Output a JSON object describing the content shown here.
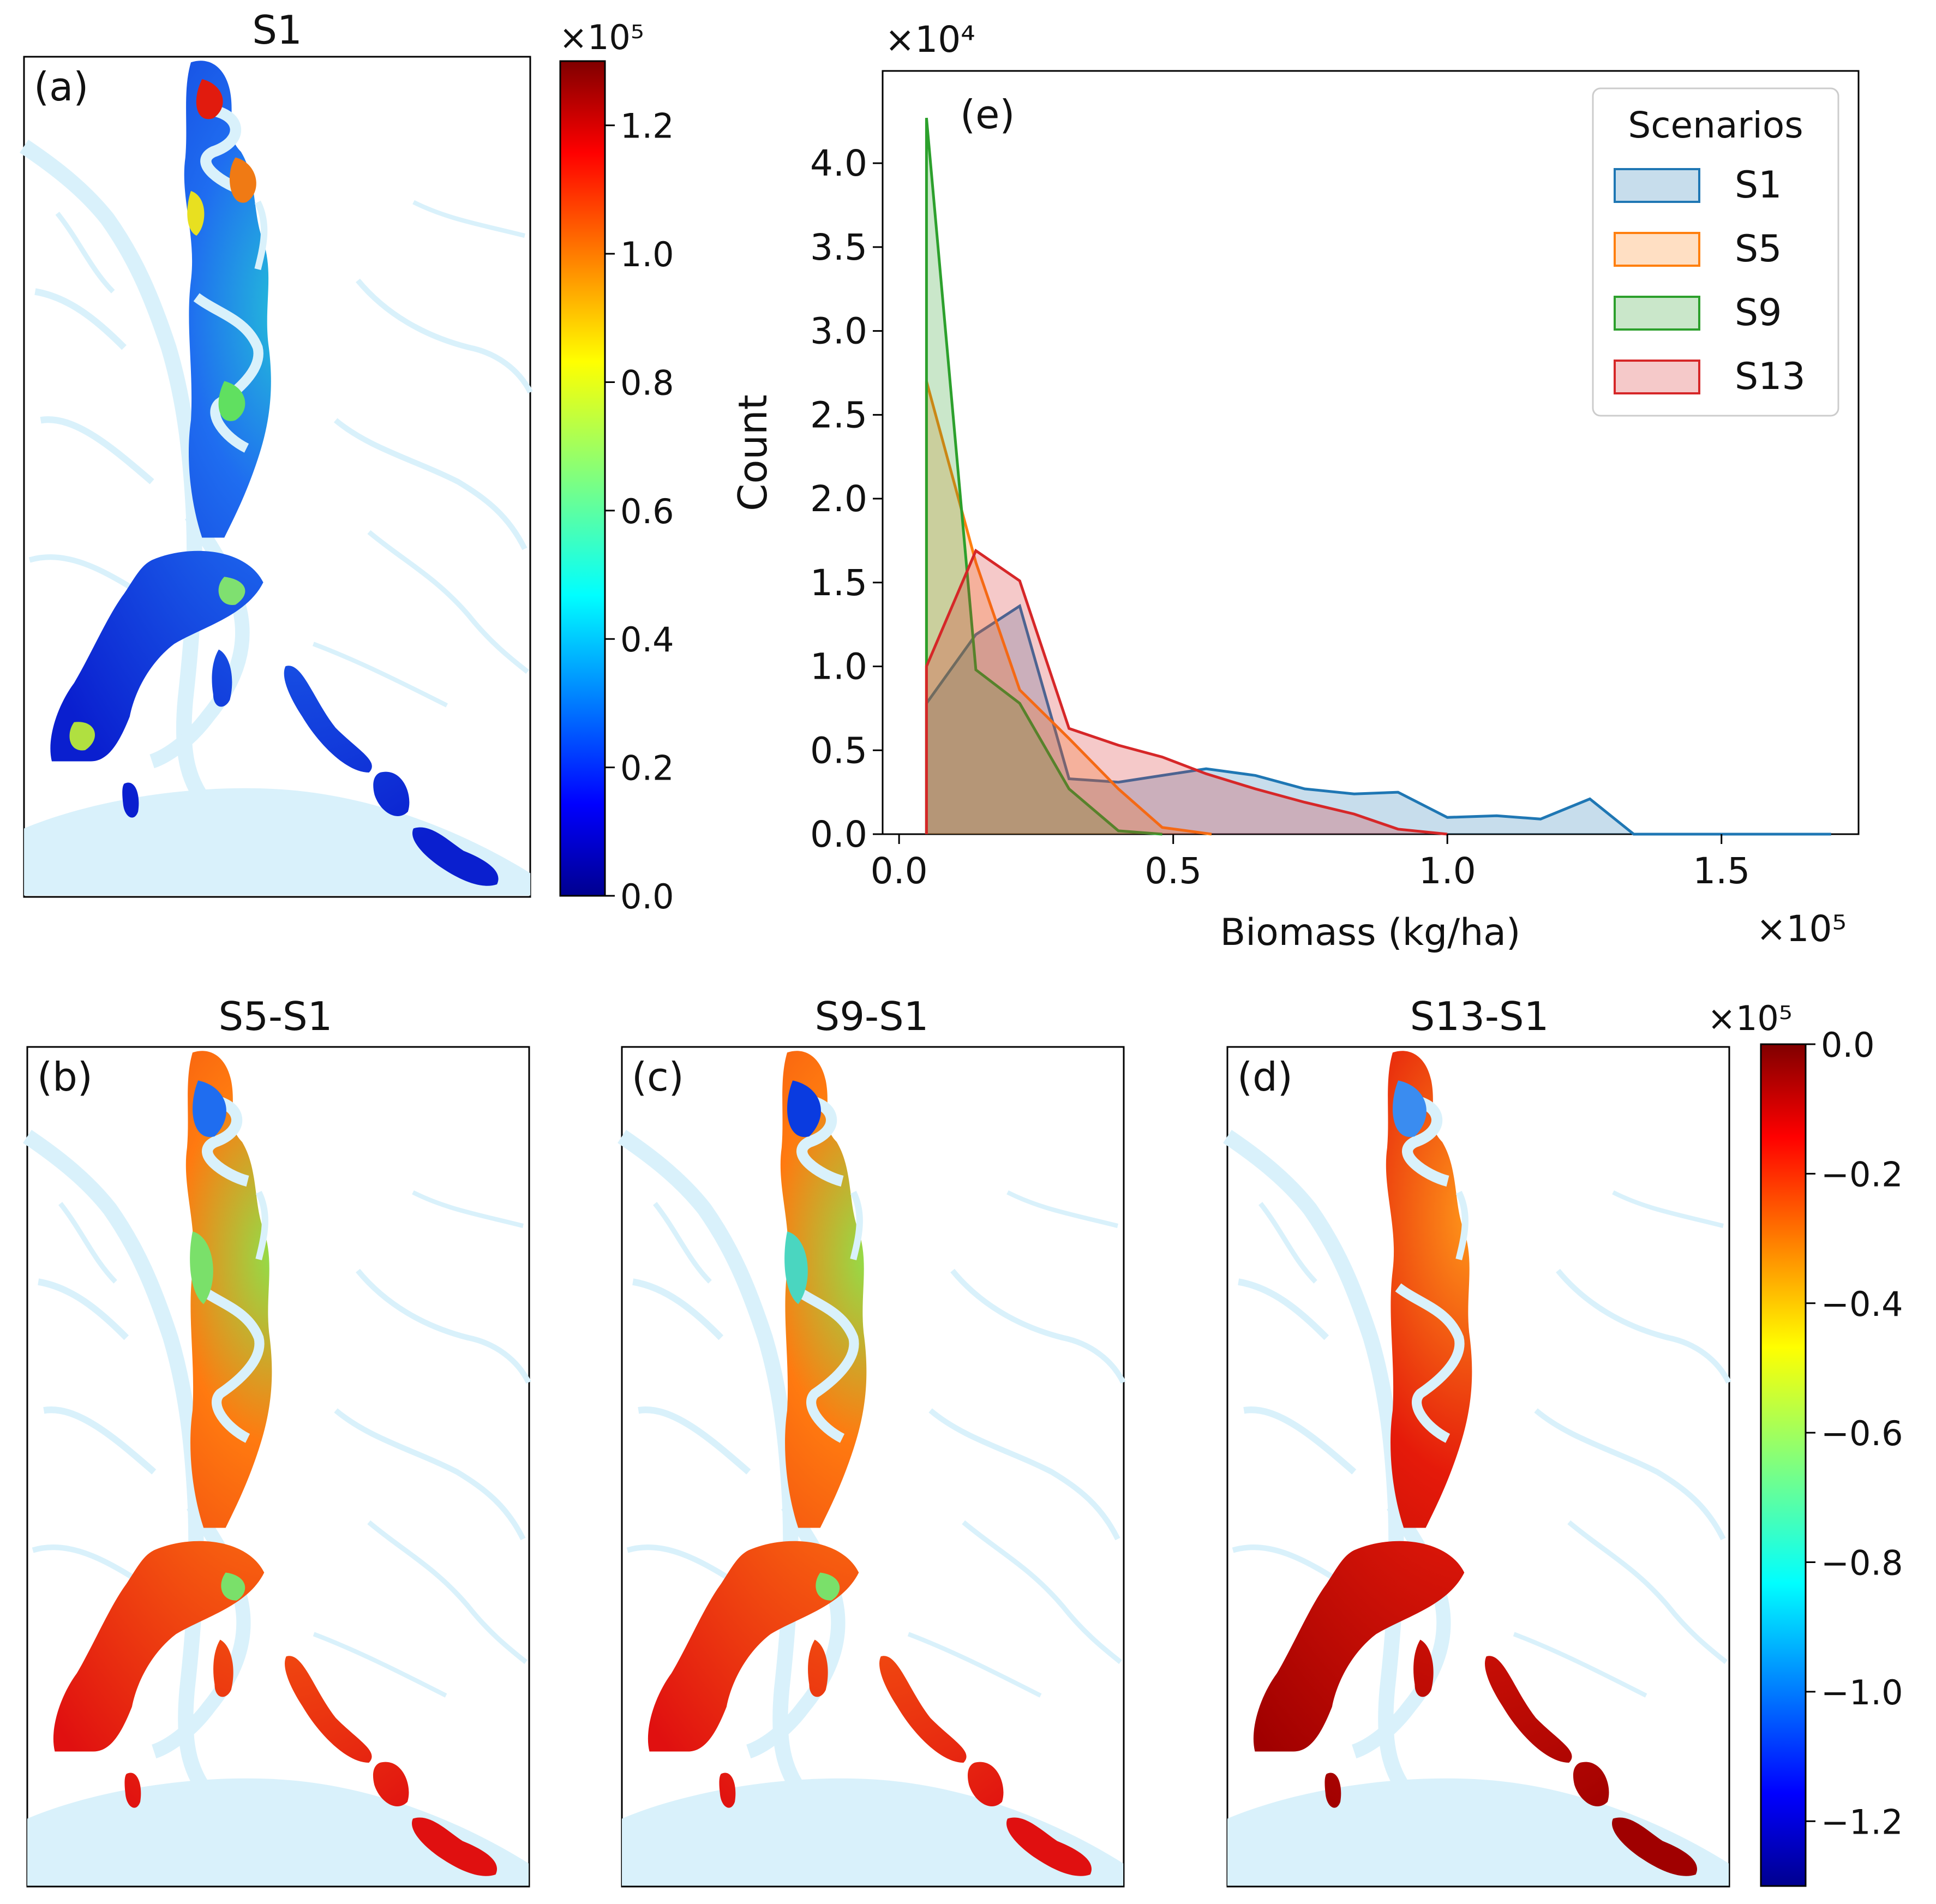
{
  "panels": {
    "a": {
      "tag": "(a)",
      "title": "S1"
    },
    "b": {
      "tag": "(b)",
      "title": "S5-S1"
    },
    "c": {
      "tag": "(c)",
      "title": "S9-S1"
    },
    "d": {
      "tag": "(d)",
      "title": "S13-S1"
    },
    "e": {
      "tag": "(e)"
    }
  },
  "colorbar_top": {
    "exponent_label": "×10⁵",
    "ticks": [
      {
        "v": 0.0,
        "label": "0.0"
      },
      {
        "v": 0.2,
        "label": "0.2"
      },
      {
        "v": 0.4,
        "label": "0.4"
      },
      {
        "v": 0.6,
        "label": "0.6"
      },
      {
        "v": 0.8,
        "label": "0.8"
      },
      {
        "v": 1.0,
        "label": "1.0"
      },
      {
        "v": 1.2,
        "label": "1.2"
      }
    ],
    "range": [
      0,
      1.3
    ]
  },
  "colorbar_bottom": {
    "exponent_label": "×10⁵",
    "ticks": [
      {
        "v": 0.0,
        "label": "0.0"
      },
      {
        "v": -0.2,
        "label": "−0.2"
      },
      {
        "v": -0.4,
        "label": "−0.4"
      },
      {
        "v": -0.6,
        "label": "−0.6"
      },
      {
        "v": -0.8,
        "label": "−0.8"
      },
      {
        "v": -1.0,
        "label": "−1.0"
      },
      {
        "v": -1.2,
        "label": "−1.2"
      }
    ],
    "range": [
      -1.3,
      0
    ]
  },
  "chart_data": {
    "type": "area",
    "xlabel": "Biomass (kg/ha)",
    "ylabel": "Count",
    "x_exponent_label": "×10⁵",
    "y_exponent_label": "×10⁴",
    "xlim": [
      -0.03,
      1.75
    ],
    "ylim": [
      0,
      4.55
    ],
    "xticks": [
      {
        "v": 0.0,
        "label": "0.0"
      },
      {
        "v": 0.5,
        "label": "0.5"
      },
      {
        "v": 1.0,
        "label": "1.0"
      },
      {
        "v": 1.5,
        "label": "1.5"
      }
    ],
    "yticks": [
      {
        "v": 0.0,
        "label": "0.0"
      },
      {
        "v": 0.5,
        "label": "0.5"
      },
      {
        "v": 1.0,
        "label": "1.0"
      },
      {
        "v": 1.5,
        "label": "1.5"
      },
      {
        "v": 2.0,
        "label": "2.0"
      },
      {
        "v": 2.5,
        "label": "2.5"
      },
      {
        "v": 3.0,
        "label": "3.0"
      },
      {
        "v": 3.5,
        "label": "3.5"
      },
      {
        "v": 4.0,
        "label": "4.0"
      }
    ],
    "legend": {
      "title": "Scenarios",
      "position": "top-right"
    },
    "series": [
      {
        "name": "S1",
        "color": "#1f77b4",
        "x": [
          0.05,
          0.05,
          0.14,
          0.22,
          0.31,
          0.4,
          0.48,
          0.56,
          0.65,
          0.74,
          0.83,
          0.91,
          1.0,
          1.09,
          1.17,
          1.26,
          1.34,
          1.7
        ],
        "y": [
          0,
          0.78,
          1.19,
          1.36,
          0.33,
          0.31,
          0.35,
          0.39,
          0.35,
          0.27,
          0.24,
          0.25,
          0.1,
          0.11,
          0.09,
          0.21,
          0,
          0
        ]
      },
      {
        "name": "S5",
        "color": "#ff7f0e",
        "x": [
          0.05,
          0.05,
          0.14,
          0.22,
          0.31,
          0.4,
          0.48,
          0.57
        ],
        "y": [
          0,
          2.7,
          1.62,
          0.86,
          0.57,
          0.27,
          0.04,
          0
        ]
      },
      {
        "name": "S9",
        "color": "#2ca02c",
        "x": [
          0.05,
          0.05,
          0.14,
          0.22,
          0.31,
          0.4,
          0.48
        ],
        "y": [
          0,
          4.27,
          0.98,
          0.78,
          0.27,
          0.02,
          0
        ]
      },
      {
        "name": "S13",
        "color": "#d62728",
        "x": [
          0.05,
          0.05,
          0.14,
          0.22,
          0.31,
          0.4,
          0.48,
          0.56,
          0.65,
          0.74,
          0.83,
          0.91,
          1.0
        ],
        "y": [
          0,
          1.0,
          1.69,
          1.51,
          0.63,
          0.53,
          0.46,
          0.36,
          0.27,
          0.19,
          0.12,
          0.03,
          0
        ]
      }
    ]
  }
}
